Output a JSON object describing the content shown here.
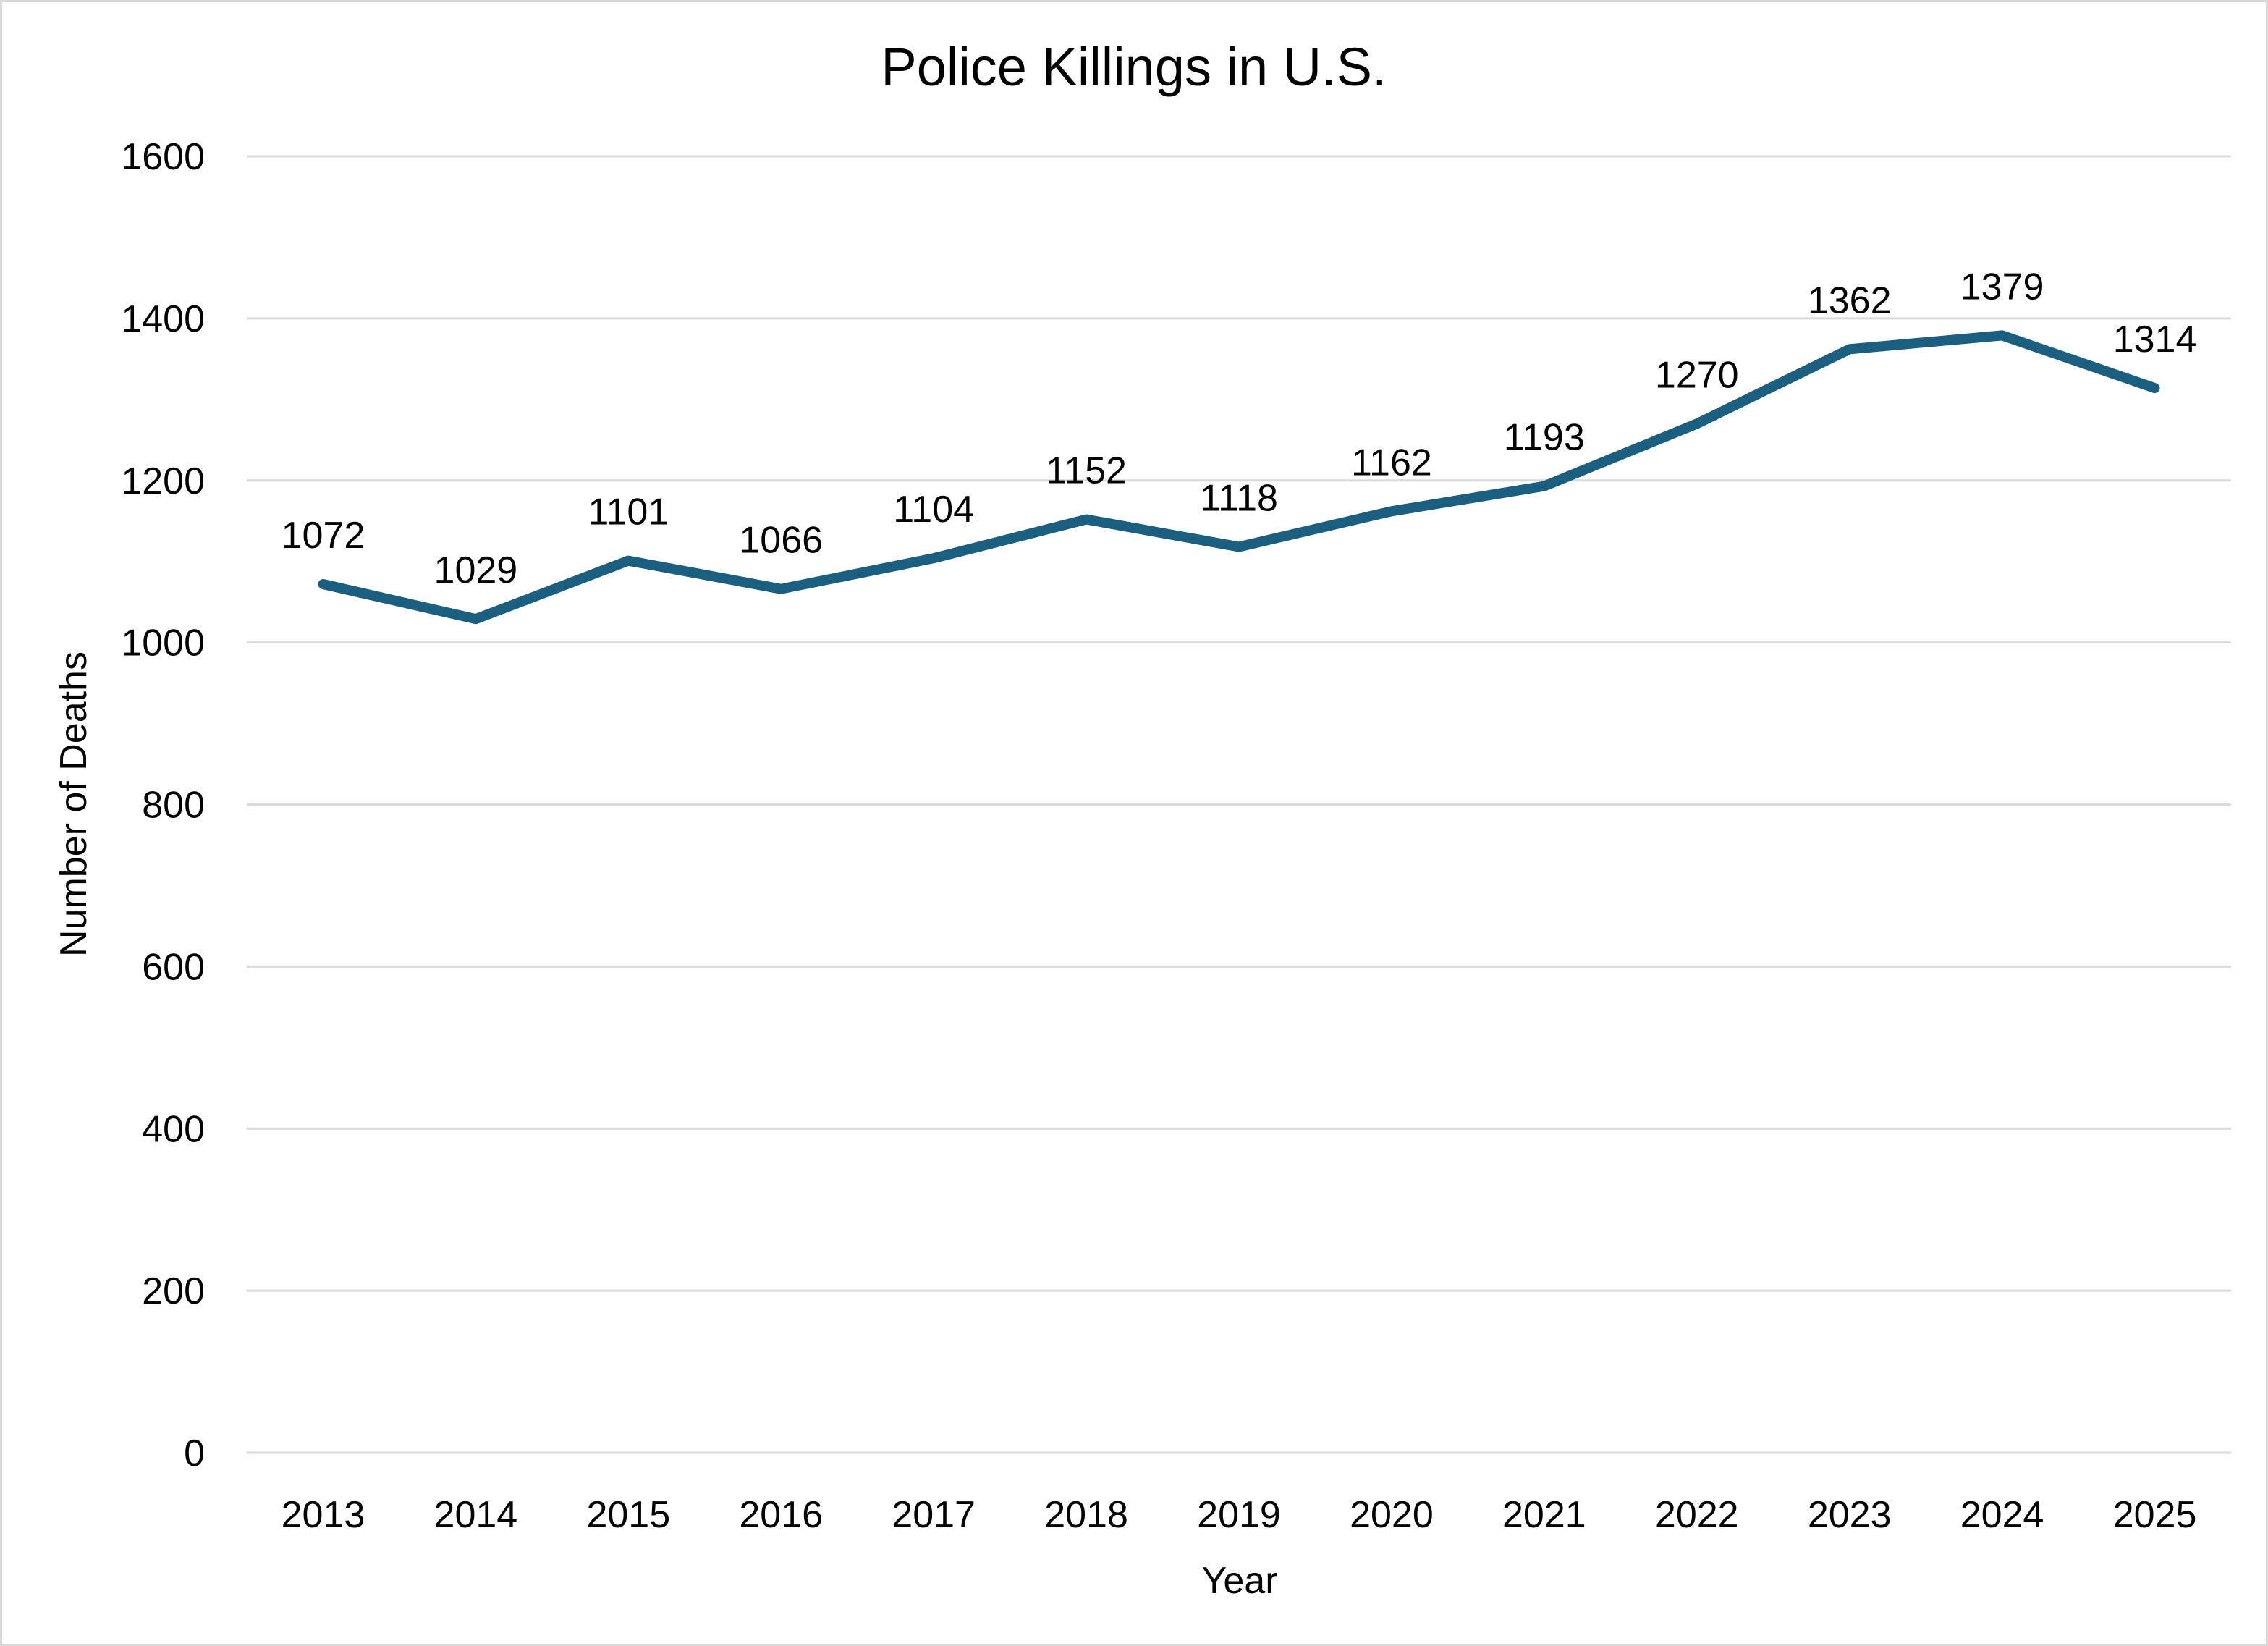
{
  "chart_data": {
    "type": "line",
    "title": "Police Killings in U.S.",
    "xlabel": "Year",
    "ylabel": "Number of Deaths",
    "categories": [
      "2013",
      "2014",
      "2015",
      "2016",
      "2017",
      "2018",
      "2019",
      "2020",
      "2021",
      "2022",
      "2023",
      "2024",
      "2025"
    ],
    "series": [
      {
        "values": [
          1072,
          1029,
          1101,
          1066,
          1104,
          1152,
          1118,
          1162,
          1193,
          1270,
          1362,
          1379,
          1314
        ]
      }
    ],
    "data_labels": [
      "1072",
      "1029",
      "1101",
      "1066",
      "1104",
      "1152",
      "1118",
      "1162",
      "1193",
      "1270",
      "1362",
      "1379",
      "1314"
    ],
    "ylim": [
      0,
      1600
    ],
    "yticks": [
      "0",
      "200",
      "400",
      "600",
      "800",
      "1000",
      "1200",
      "1400",
      "1600"
    ],
    "grid": true,
    "legend": "none",
    "line_color": "#1a5e80",
    "grid_color": "#d9d9d9"
  }
}
